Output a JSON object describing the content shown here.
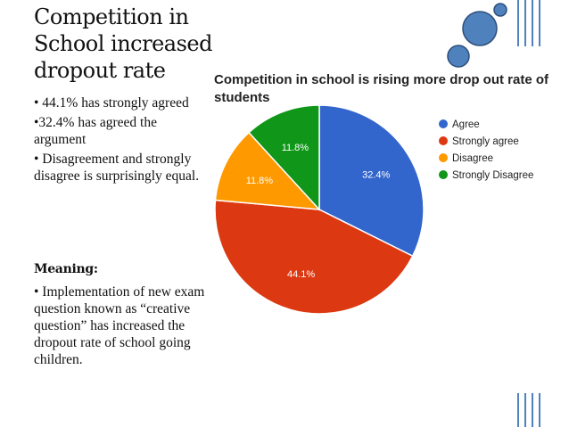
{
  "slide": {
    "title": "Competition in School increased dropout rate",
    "bullets": [
      "• 44.1% has strongly agreed",
      "•32.4% has agreed the argument",
      "• Disagreement and strongly disagree is surprisingly equal."
    ],
    "meaning_heading": "Meaning:",
    "meaning_text": "• Implementation of new exam question known as “creative question”  has increased the dropout rate of school going children."
  },
  "chart_data": {
    "type": "pie",
    "title": "Competition in school is rising more drop out rate of students",
    "labels": [
      "Agree",
      "Strongly agree",
      "Disagree",
      "Strongly Disagree"
    ],
    "values": [
      32.4,
      44.1,
      11.8,
      11.8
    ],
    "value_labels": [
      "32.4%",
      "44.1%",
      "11.8%",
      "11.8%"
    ],
    "colors": [
      "#3366cc",
      "#dc3912",
      "#ff9900",
      "#109618"
    ],
    "legend_position": "right",
    "start_angle_deg": 0,
    "direction": "clockwise"
  },
  "colors": {
    "accent_blue": "#4f81bd",
    "accent_dark": "#2c4f7c"
  }
}
